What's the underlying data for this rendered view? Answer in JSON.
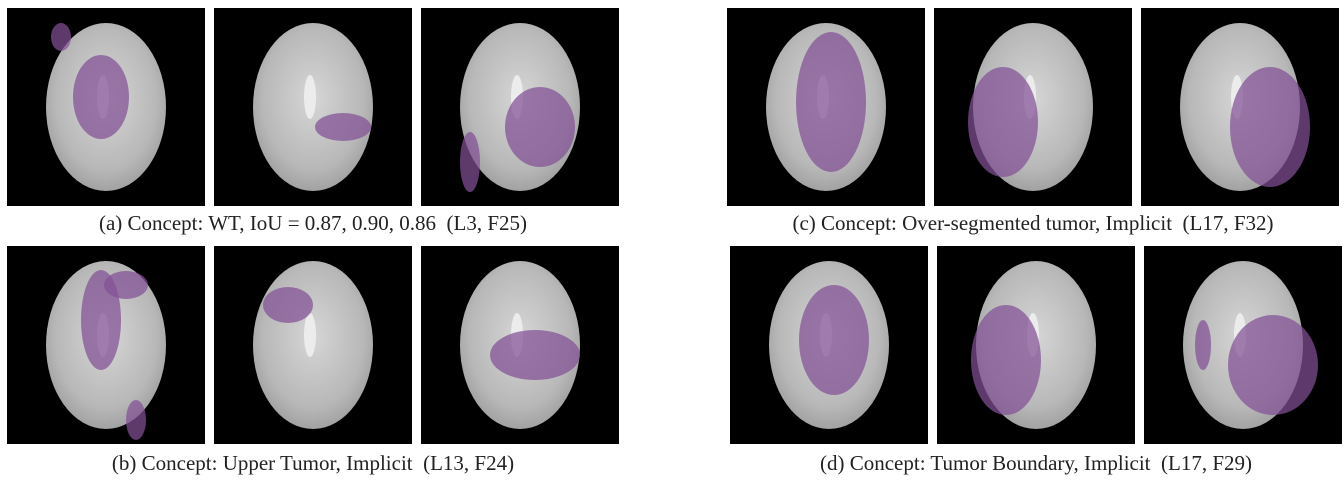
{
  "panels": [
    {
      "caption": "(a) Concept: WT, IoU = 0.87, 0.90, 0.86  (L3, F25)"
    },
    {
      "caption": "(b) Concept: Upper Tumor, Implicit  (L13, F24)"
    },
    {
      "caption": "(c) Concept: Over-segmented tumor, Implicit  (L17, F32)"
    },
    {
      "caption": "(d) Concept: Tumor Boundary, Implicit  (L17, F29)"
    }
  ]
}
